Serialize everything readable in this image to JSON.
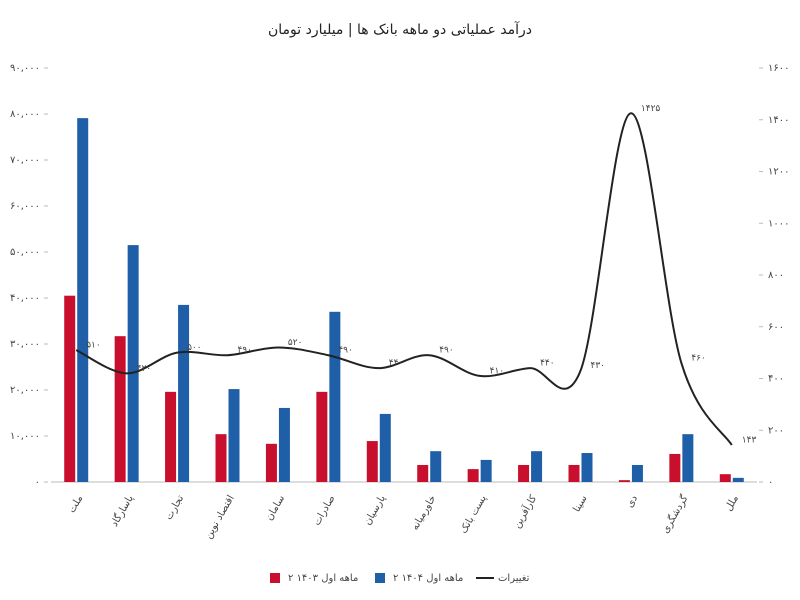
{
  "chart_data": {
    "type": "bar-line",
    "title": "درآمد عملیاتی دو ماهه بانک ها | میلیارد تومان",
    "categories": [
      "ملت",
      "پاسارگاد",
      "تجارت",
      "اقتصاد نوین",
      "سامان",
      "صادرات",
      "پارسیان",
      "خاورمیانه",
      "پست بانک",
      "کارآفرین",
      "سینا",
      "دی",
      "گردشگری",
      "ملل"
    ],
    "series": [
      {
        "name": "۲ ماهه اول ۱۴۰۳",
        "color": "#c8102e",
        "type": "bar",
        "values": [
          40500,
          31700,
          19600,
          10400,
          8300,
          19600,
          8900,
          3700,
          2800,
          3700,
          3700,
          400,
          6100,
          1700
        ]
      },
      {
        "name": "۲ ماهه اول ۱۴۰۴",
        "color": "#1f5fa8",
        "type": "bar",
        "values": [
          79100,
          51500,
          38500,
          20200,
          16100,
          37000,
          14800,
          6700,
          4800,
          6700,
          6300,
          3700,
          10400,
          900
        ]
      },
      {
        "name": "تغییرات",
        "color": "#222222",
        "type": "line",
        "axis": "y2",
        "values": [
          510,
          420,
          500,
          490,
          520,
          490,
          440,
          490,
          410,
          440,
          430,
          1425,
          460,
          143
        ],
        "value_labels": [
          "۵۱۰",
          "۴۲۰",
          "۵۰۰",
          "۴۹۰",
          "۵۲۰",
          "۴۹۰",
          "۴۴۰",
          "۴۹۰",
          "۴۱۰",
          "۴۴۰",
          "۴۳۰",
          "۱۴۲۵",
          "۴۶۰",
          "۱۴۳"
        ]
      }
    ],
    "ylim": [
      0,
      90000
    ],
    "yticks": [
      {
        "value": 0,
        "label": "۰"
      },
      {
        "value": 10000,
        "label": "۱۰,۰۰۰"
      },
      {
        "value": 20000,
        "label": "۲۰,۰۰۰"
      },
      {
        "value": 30000,
        "label": "۳۰,۰۰۰"
      },
      {
        "value": 40000,
        "label": "۴۰,۰۰۰"
      },
      {
        "value": 50000,
        "label": "۵۰,۰۰۰"
      },
      {
        "value": 60000,
        "label": "۶۰,۰۰۰"
      },
      {
        "value": 70000,
        "label": "۷۰,۰۰۰"
      },
      {
        "value": 80000,
        "label": "۸۰,۰۰۰"
      },
      {
        "value": 90000,
        "label": "۹۰,۰۰۰"
      }
    ],
    "y2lim": [
      0,
      1600
    ],
    "y2ticks": [
      {
        "value": 0,
        "label": "۰"
      },
      {
        "value": 200,
        "label": "۲۰۰"
      },
      {
        "value": 400,
        "label": "۴۰۰"
      },
      {
        "value": 600,
        "label": "۶۰۰"
      },
      {
        "value": 800,
        "label": "۸۰۰"
      },
      {
        "value": 1000,
        "label": "۱۰۰۰"
      },
      {
        "value": 1200,
        "label": "۱۲۰۰"
      },
      {
        "value": 1400,
        "label": "۱۴۰۰"
      },
      {
        "value": 1600,
        "label": "۱۶۰۰"
      }
    ],
    "legend": "bottom"
  }
}
